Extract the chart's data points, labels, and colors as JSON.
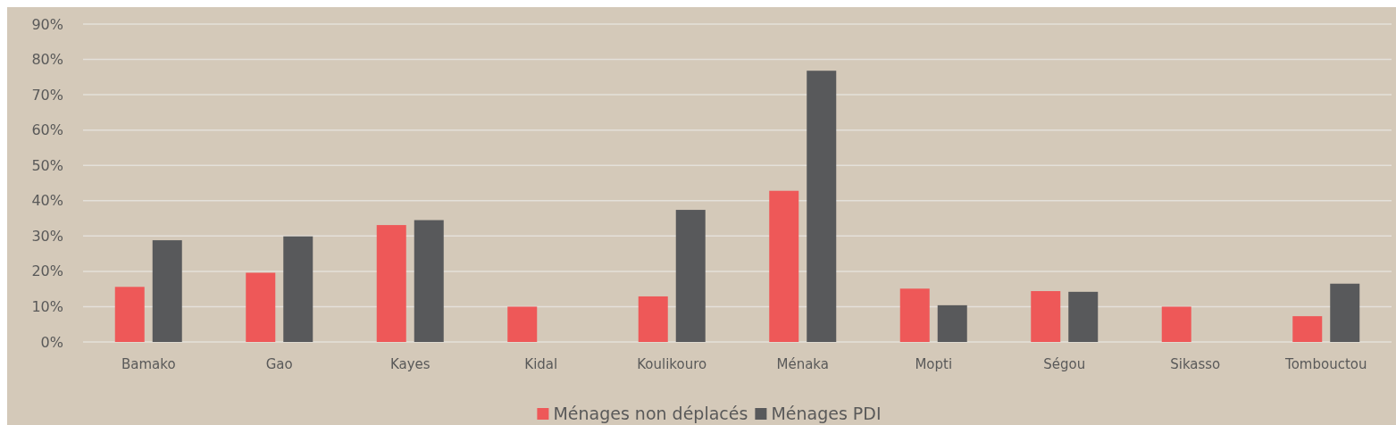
{
  "chart_data": {
    "type": "bar",
    "categories": [
      "Bamako",
      "Gao",
      "Kayes",
      "Kidal",
      "Koulikouro",
      "Ménaka",
      "Mopti",
      "Ségou",
      "Sikasso",
      "Tombouctou"
    ],
    "series": [
      {
        "name": "Ménages non déplacés",
        "color": "#ee5858",
        "values": [
          15.6,
          19.6,
          33.1,
          10.0,
          12.9,
          42.8,
          15.1,
          14.4,
          10.0,
          7.3
        ]
      },
      {
        "name": "Ménages PDI",
        "color": "#58595b",
        "values": [
          28.8,
          29.9,
          34.5,
          null,
          37.4,
          76.8,
          10.4,
          14.2,
          null,
          16.5
        ]
      }
    ],
    "ylim": [
      0,
      90
    ],
    "yticks": [
      {
        "value": 0,
        "label": "0%"
      },
      {
        "value": 10,
        "label": "10%"
      },
      {
        "value": 20,
        "label": "20%"
      },
      {
        "value": 30,
        "label": "30%"
      },
      {
        "value": 40,
        "label": "40%"
      },
      {
        "value": 50,
        "label": "50%"
      },
      {
        "value": 60,
        "label": "60%"
      },
      {
        "value": 70,
        "label": "70%"
      },
      {
        "value": 80,
        "label": "80%"
      },
      {
        "value": 90,
        "label": "90%"
      }
    ],
    "grid": "y",
    "legend": "bottom"
  }
}
